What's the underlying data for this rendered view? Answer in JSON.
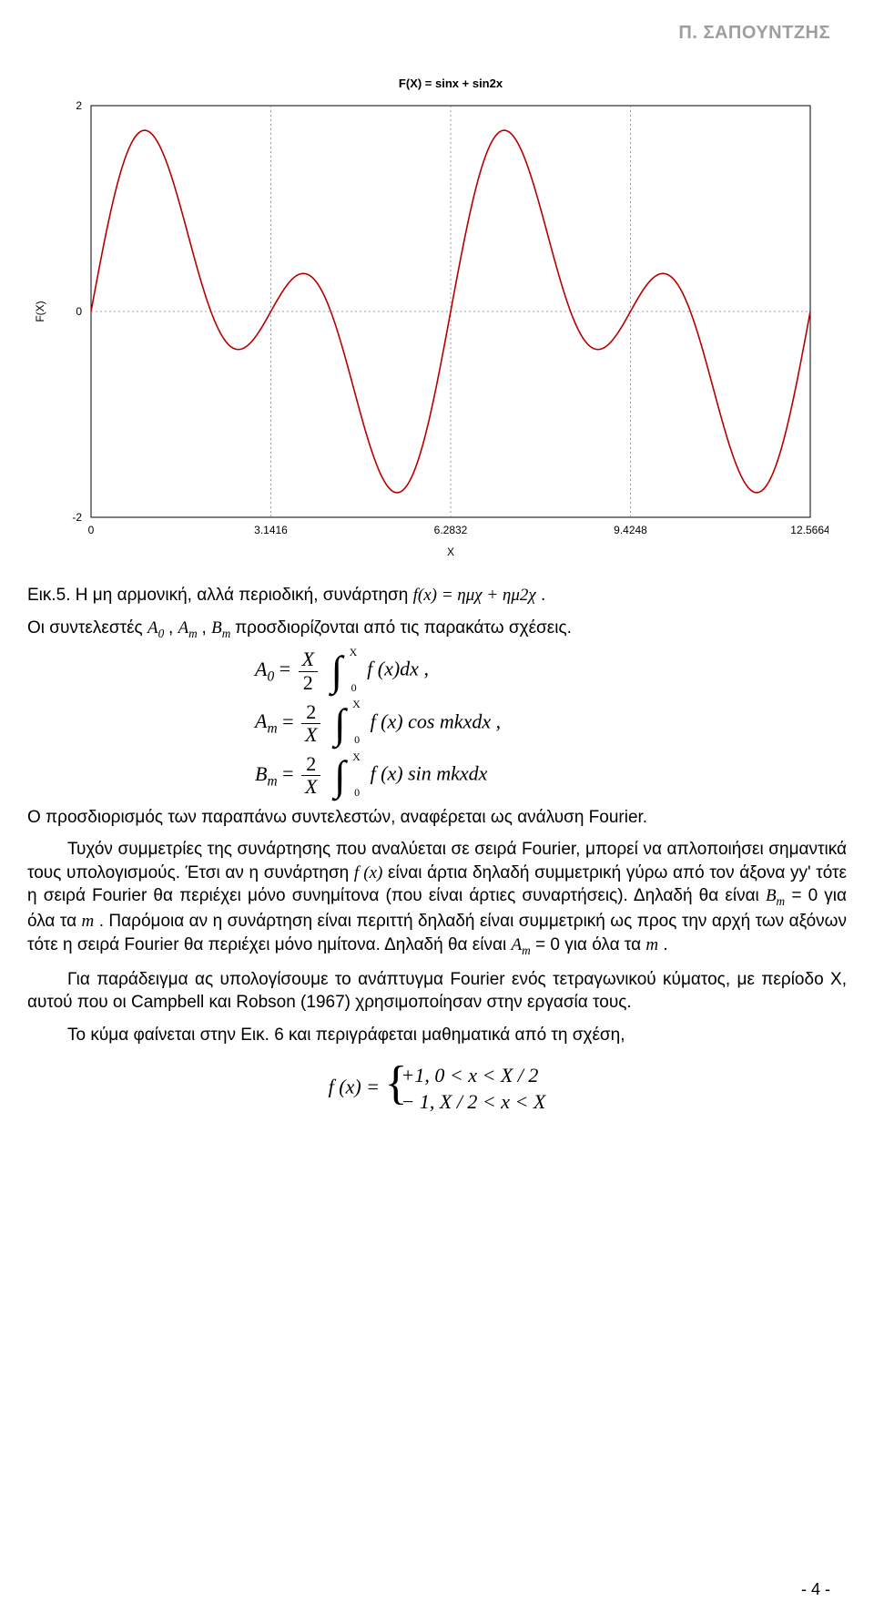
{
  "header": {
    "author": "Π. ΣΑΠΟΥΝΤΖΗΣ"
  },
  "chart": {
    "type": "line",
    "title": "F(X) = sinx + sin2x",
    "xlabel": "X",
    "ylabel": "F(X)",
    "xlim": [
      0,
      12.5664
    ],
    "ylim": [
      -2,
      2
    ],
    "xticks": [
      0,
      3.1416,
      6.2832,
      9.4248,
      12.5664
    ],
    "xticklabels": [
      "0",
      "3.1416",
      "6.2832",
      "9.4248",
      "12.5664"
    ],
    "yticks": [
      -2,
      0,
      2
    ],
    "yticklabels": [
      "-2",
      "0",
      "2"
    ],
    "line_color": "#b80000",
    "line_width": 1.6,
    "grid_line_color": "#808080",
    "grid_dash": "2,3",
    "axis_color": "#000000",
    "background_color": "#ffffff",
    "title_fontsize": 13,
    "tick_fontsize": 12,
    "label_fontsize": 12
  },
  "caption": {
    "prefix": "Εικ.5. Η μη αρμονική, αλλά περιοδική, συνάρτηση ",
    "formula": "f(x) = ημχ + ημ2χ",
    "suffix": "."
  },
  "coeff_intro": {
    "prefix": "Οι συντελεστές ",
    "A0": "A",
    "A0sub": "0",
    "Am": "A",
    "Amsub": "m",
    "Bm": "B",
    "Bmsub": "m",
    "middle": " προσδιορίζονται από τις παρακάτω σχέσεις."
  },
  "formulas": {
    "A0_lhs": "A",
    "A0_sub": "0",
    "A0_eq": " = ",
    "A0_num": "X",
    "A0_den": "2",
    "A0_int_up": "X",
    "A0_int_dn": "0",
    "A0_body": "f (x)dx",
    "A0_tail": " ,",
    "Am_lhs": "A",
    "Am_sub": "m",
    "Am_eq": " = ",
    "Am_num": "2",
    "Am_den": "X",
    "Am_int_up": "X",
    "Am_int_dn": "0",
    "Am_body": "f (x) cos mkxdx",
    "Am_tail": " ,",
    "Bm_lhs": "B",
    "Bm_sub": "m",
    "Bm_eq": " = ",
    "Bm_num": "2",
    "Bm_den": "X",
    "Bm_int_up": "X",
    "Bm_int_dn": "0",
    "Bm_body": "f (x) sin mkxdx"
  },
  "para_fourier_def": "Ο προσδιορισμός των παραπάνω συντελεστών, αναφέρεται ως ανάλυση Fourier.",
  "para_symm": {
    "l1_a": "Τυχόν συμμετρίες της συνάρτησης που αναλύεται σε σειρά Fourier, μπορεί να απλοποιήσει σημαντικά τους υπολογισμούς. Έτσι αν η συνάρτηση ",
    "fx": "f (x)",
    "l1_b": " είναι άρτια δηλαδή συμμετρική γύρω από τον άξονα yy' τότε η σειρά Fourier θα περιέχει μόνο συνημίτονα (που είναι άρτιες συναρτήσεις). Δηλαδή θα είναι ",
    "Bm_sym": "B",
    "Bm_sub": "m",
    "l1_c": " = 0 για όλα τα ",
    "m_sym": "m",
    "l1_d": ". Παρόμοια αν η συνάρτηση είναι περιττή δηλαδή είναι συμμετρική ως προς την αρχή των αξόνων τότε η σειρά Fourier θα περιέχει μόνο ημίτονα. Δηλαδή θα είναι ",
    "Am_sym": "A",
    "Am_sub": "m",
    "l1_e": " = 0 για όλα τα ",
    "m_sym2": "m",
    "l1_f": "."
  },
  "para_example": "Για παράδειγμα ας υπολογίσουμε το ανάπτυγμα Fourier ενός τετραγωνικού κύματος, με περίοδο Χ, αυτού που οι Campbell και Robson (1967) χρησιμοποίησαν στην εργασία τους.",
  "para_square": "Το κύμα φαίνεται στην Εικ. 6 και περιγράφεται μαθηματικά από τη σχέση,",
  "square_formula": {
    "lhs": "f (x) = ",
    "row1": "+1, 0 < x < X / 2",
    "row2": "− 1, X / 2 < x < X"
  },
  "page_num": "- 4 -"
}
